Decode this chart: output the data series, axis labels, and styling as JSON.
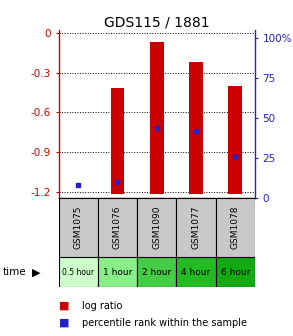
{
  "title": "GDS115 / 1881",
  "samples": [
    "GSM1075",
    "GSM1076",
    "GSM1090",
    "GSM1077",
    "GSM1078"
  ],
  "time_labels": [
    "0.5 hour",
    "1 hour",
    "2 hour",
    "4 hour",
    "6 hour"
  ],
  "log_ratio": [
    -1.22,
    -0.42,
    -0.07,
    -0.22,
    -0.4
  ],
  "percentile_pct": [
    8,
    10,
    44,
    42,
    26
  ],
  "ylim_left": [
    -1.25,
    0.02
  ],
  "ylim_right": [
    0,
    105
  ],
  "yticks_left": [
    0,
    -0.3,
    -0.6,
    -0.9,
    -1.2
  ],
  "yticks_right": [
    0,
    25,
    50,
    75,
    100
  ],
  "bar_color": "#cc0000",
  "dot_color": "#2222cc",
  "bar_width": 0.35,
  "background_color": "#ffffff",
  "label_color_left": "#cc0000",
  "label_color_right": "#2222cc",
  "time_colors": [
    "#ccffcc",
    "#88ee88",
    "#44cc44",
    "#22bb22",
    "#11aa11"
  ],
  "gray_color": "#c8c8c8"
}
